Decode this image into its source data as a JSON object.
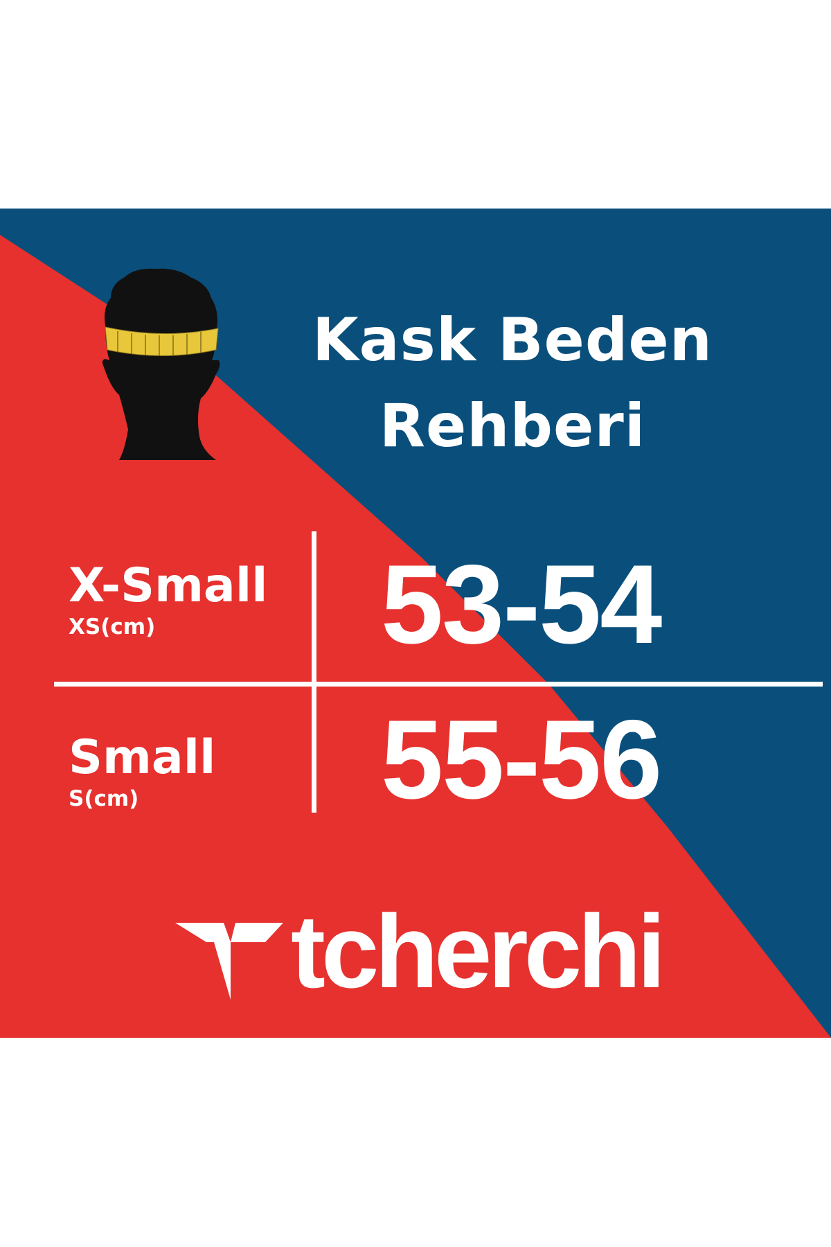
{
  "title_line1": "Kask Beden",
  "title_line2": "Rehberi",
  "sizes": [
    {
      "label": "X-Small",
      "unit": "XS(cm)",
      "range": "53-54"
    },
    {
      "label": "Small",
      "unit": "S(cm)",
      "range": "55-56"
    }
  ],
  "brand": "tcherchi",
  "icons": {
    "illustration": "head-with-measuring-tape-icon",
    "logo": "tcherchi-t-logo-icon"
  },
  "colors": {
    "red": "#e6312e",
    "blue": "#0a4f7c",
    "tape": "#e8c73a",
    "text": "#ffffff"
  }
}
